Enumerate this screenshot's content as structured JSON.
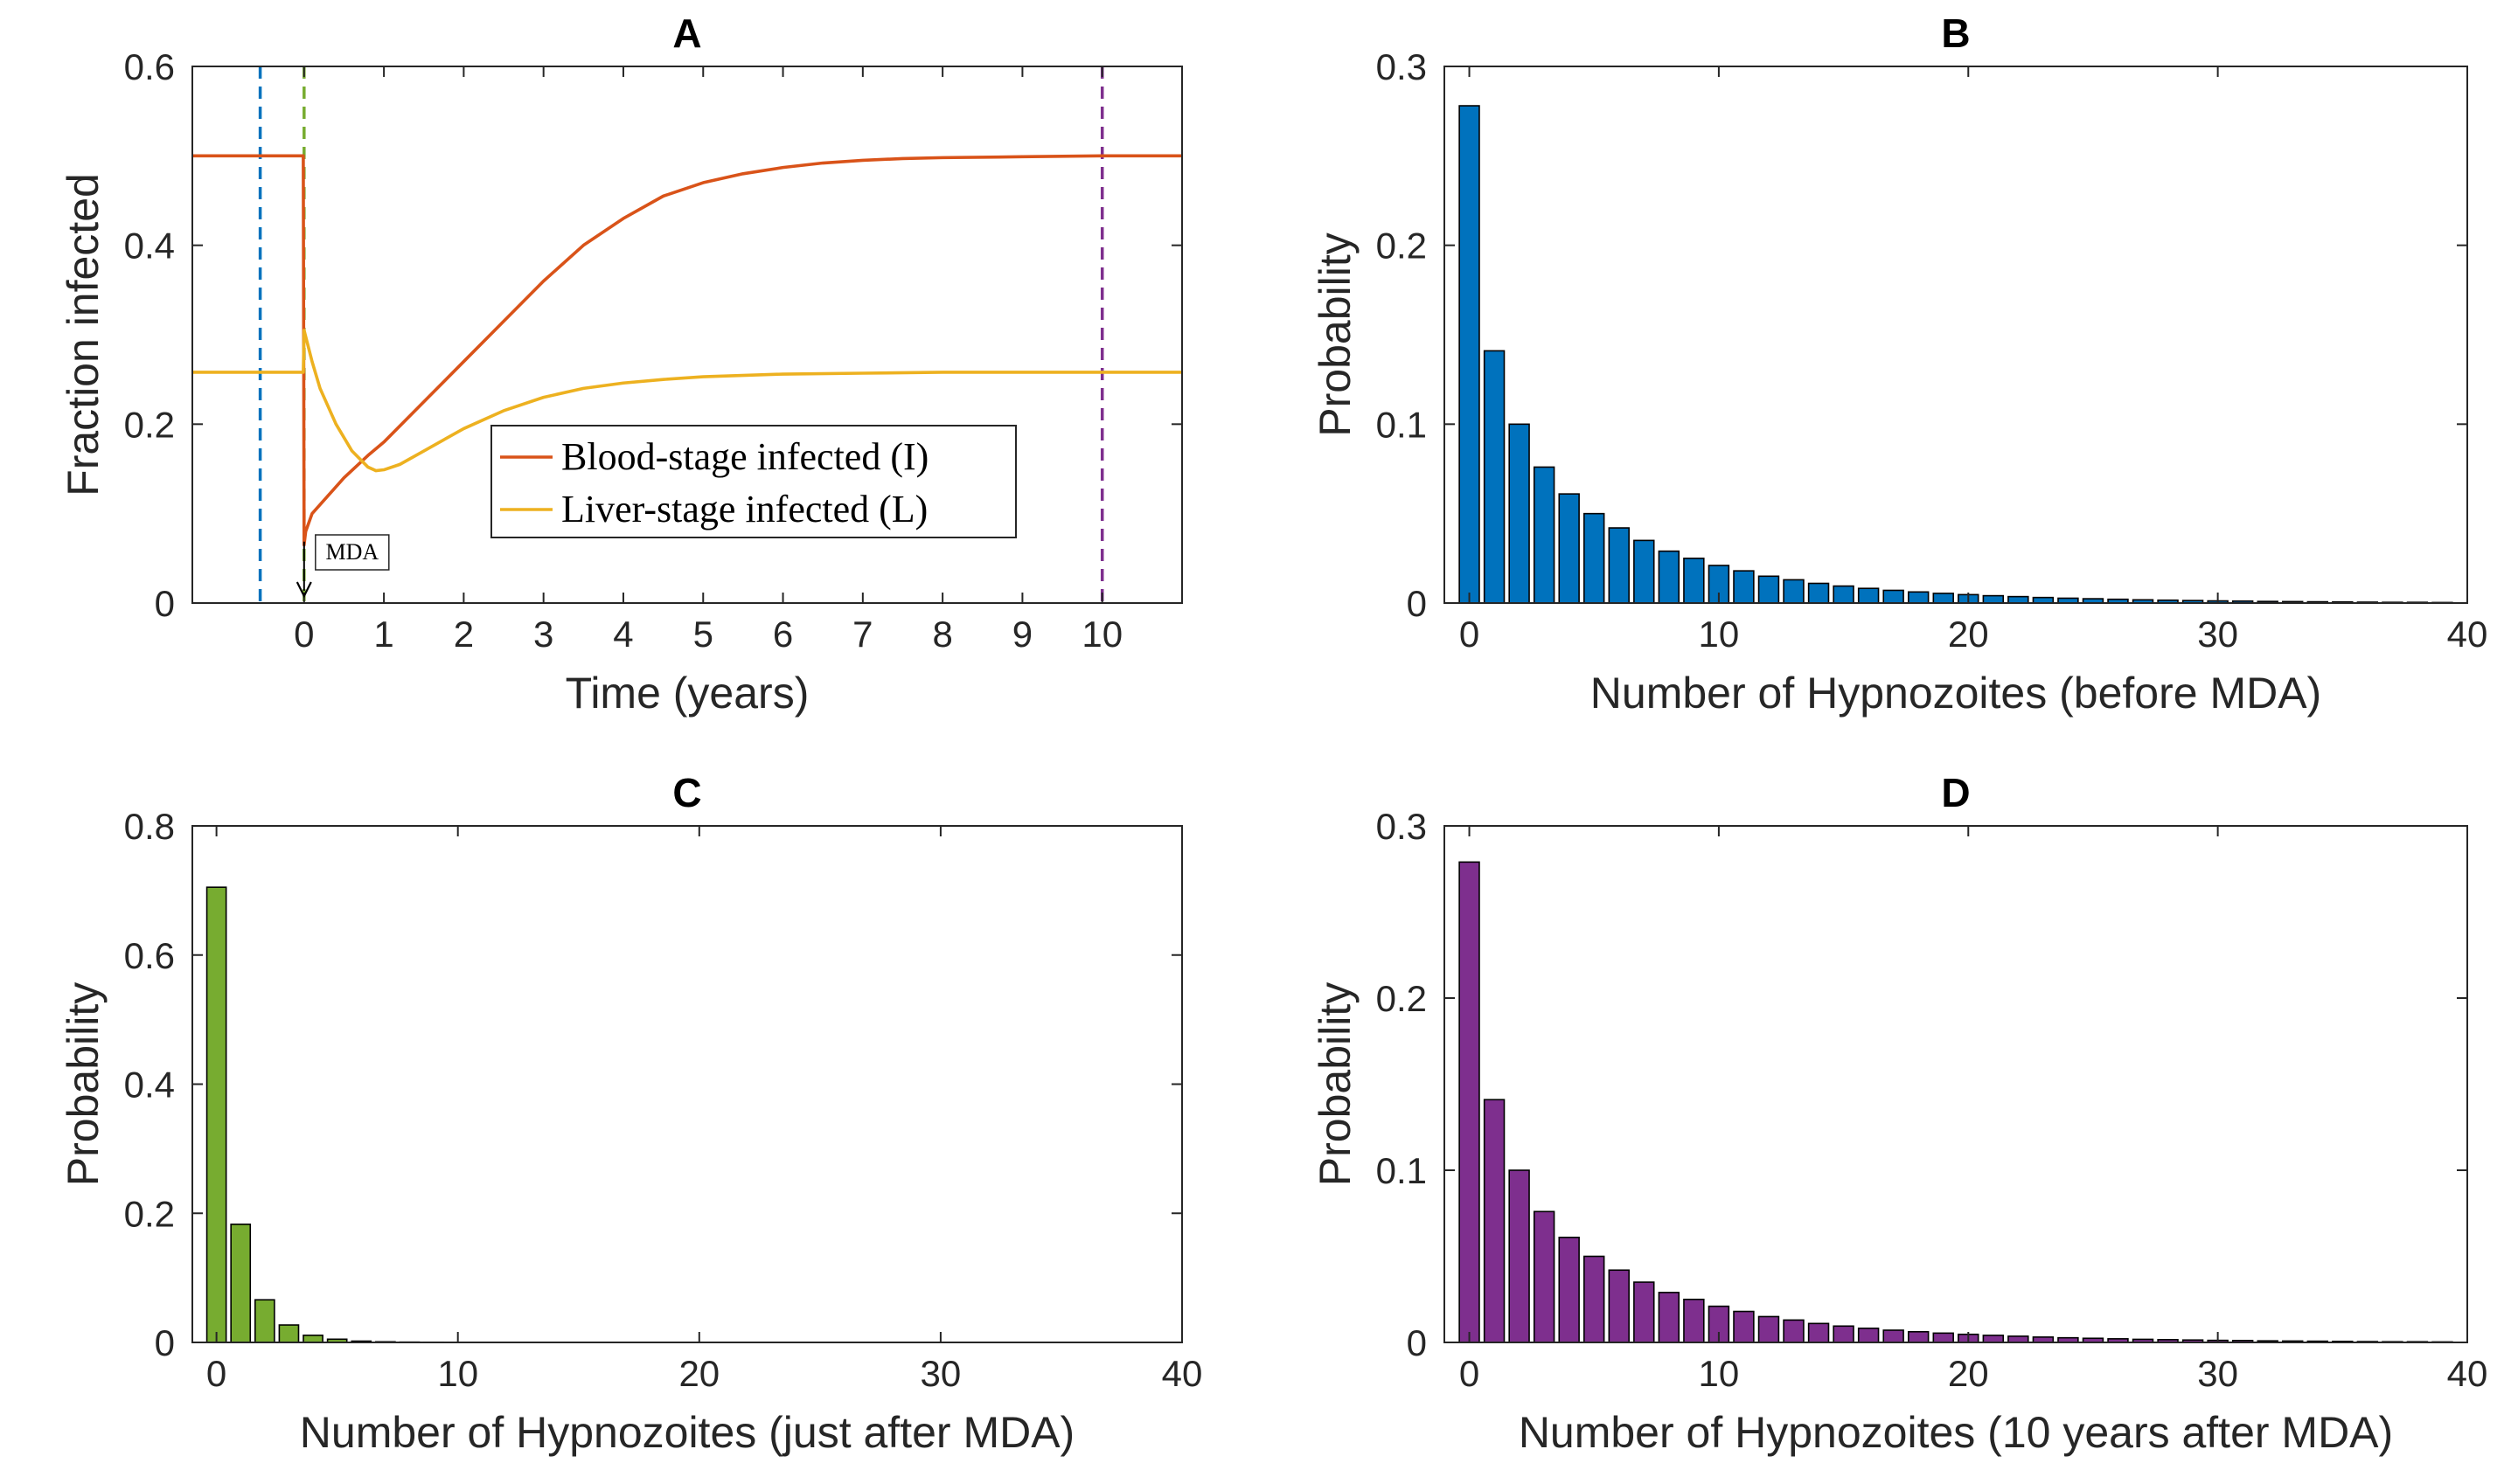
{
  "colors": {
    "blood": "#D95319",
    "liver": "#EDB120",
    "vline_blue": "#0072BD",
    "vline_green": "#77AC30",
    "vline_purple": "#7E2F8E",
    "bar_B": "#0072BD",
    "bar_C": "#77AC30",
    "bar_D": "#7E2F8E",
    "axis": "#262626"
  },
  "chart_data": [
    {
      "panel": "A",
      "type": "line",
      "title": "A",
      "xlabel": "Time (years)",
      "ylabel": "Fraction infected",
      "xlim": [
        -1.4,
        11
      ],
      "ylim": [
        0,
        0.6
      ],
      "xticks": [
        0,
        1,
        2,
        3,
        4,
        5,
        6,
        7,
        8,
        9,
        10
      ],
      "xtick_labels": [
        "0",
        "1",
        "2",
        "3",
        "4",
        "5",
        "6",
        "7",
        "8",
        "9",
        "10"
      ],
      "yticks": [
        0,
        0.2,
        0.4,
        0.6
      ],
      "ytick_labels": [
        "0",
        "0.2",
        "0.4",
        "0.6"
      ],
      "series": [
        {
          "name": "Blood-stage infected (I)",
          "x": [
            -1.4,
            -0.01,
            0,
            0.02,
            0.1,
            0.3,
            0.5,
            0.8,
            1,
            1.5,
            2,
            2.5,
            3,
            3.5,
            4,
            4.5,
            5,
            5.5,
            6,
            6.5,
            7,
            7.5,
            8,
            9,
            10,
            11
          ],
          "y": [
            0.5,
            0.5,
            0.065,
            0.08,
            0.1,
            0.12,
            0.14,
            0.165,
            0.18,
            0.225,
            0.27,
            0.315,
            0.36,
            0.4,
            0.43,
            0.455,
            0.47,
            0.48,
            0.487,
            0.492,
            0.495,
            0.497,
            0.498,
            0.499,
            0.5,
            0.5
          ]
        },
        {
          "name": "Liver-stage infected (L)",
          "x": [
            -1.4,
            -0.01,
            0,
            0.1,
            0.2,
            0.4,
            0.6,
            0.8,
            0.9,
            1,
            1.2,
            1.5,
            2,
            2.5,
            3,
            3.5,
            4,
            4.5,
            5,
            6,
            7,
            8,
            9,
            10,
            11
          ],
          "y": [
            0.258,
            0.258,
            0.305,
            0.27,
            0.24,
            0.2,
            0.17,
            0.152,
            0.148,
            0.149,
            0.155,
            0.17,
            0.195,
            0.215,
            0.23,
            0.24,
            0.246,
            0.25,
            0.253,
            0.256,
            0.257,
            0.258,
            0.258,
            0.258,
            0.258
          ]
        }
      ],
      "vlines": [
        {
          "x": -0.55,
          "color_key": "vline_blue"
        },
        {
          "x": 0,
          "color_key": "vline_green"
        },
        {
          "x": 10,
          "color_key": "vline_purple"
        }
      ],
      "annotation": {
        "text": "MDA",
        "x": 0,
        "y": 0.055
      },
      "legend_location": "inside-right"
    },
    {
      "panel": "B",
      "type": "bar",
      "title": "B",
      "xlabel": "Number of Hypnozoites (before MDA)",
      "ylabel": "Probability",
      "xlim": [
        -1,
        40
      ],
      "ylim": [
        0,
        0.3
      ],
      "xticks": [
        0,
        10,
        20,
        30,
        40
      ],
      "xtick_labels": [
        "0",
        "10",
        "20",
        "30",
        "40"
      ],
      "yticks": [
        0,
        0.1,
        0.2,
        0.3
      ],
      "ytick_labels": [
        "0",
        "0.1",
        "0.2",
        "0.3"
      ],
      "categories": [
        0,
        1,
        2,
        3,
        4,
        5,
        6,
        7,
        8,
        9,
        10,
        11,
        12,
        13,
        14,
        15,
        16,
        17,
        18,
        19,
        20,
        21,
        22,
        23,
        24,
        25,
        26,
        27,
        28,
        29,
        30,
        31,
        32,
        33,
        34,
        35,
        36,
        37,
        38,
        39
      ],
      "values": [
        0.278,
        0.141,
        0.1,
        0.076,
        0.061,
        0.05,
        0.042,
        0.035,
        0.029,
        0.025,
        0.021,
        0.018,
        0.015,
        0.013,
        0.011,
        0.0095,
        0.0082,
        0.0071,
        0.0062,
        0.0054,
        0.0047,
        0.0041,
        0.0036,
        0.0031,
        0.0027,
        0.0024,
        0.0021,
        0.0018,
        0.0016,
        0.0014,
        0.0012,
        0.0011,
        0.0009,
        0.0008,
        0.0007,
        0.0006,
        0.0005,
        0.0004,
        0.0004,
        0.0003
      ],
      "color_key": "bar_B"
    },
    {
      "panel": "C",
      "type": "bar",
      "title": "C",
      "xlabel": "Number of Hypnozoites (just after MDA)",
      "ylabel": "Probability",
      "xlim": [
        -1,
        40
      ],
      "ylim": [
        0,
        0.8
      ],
      "xticks": [
        0,
        10,
        20,
        30,
        40
      ],
      "xtick_labels": [
        "0",
        "10",
        "20",
        "30",
        "40"
      ],
      "yticks": [
        0,
        0.2,
        0.4,
        0.6,
        0.8
      ],
      "ytick_labels": [
        "0",
        "0.2",
        "0.4",
        "0.6",
        "0.8"
      ],
      "categories": [
        0,
        1,
        2,
        3,
        4,
        5,
        6,
        7,
        8,
        9,
        10,
        11,
        12,
        13,
        14,
        15,
        16,
        17,
        18,
        19,
        20,
        21,
        22,
        23,
        24,
        25,
        26,
        27,
        28,
        29,
        30,
        31,
        32,
        33,
        34,
        35,
        36,
        37,
        38,
        39
      ],
      "values": [
        0.705,
        0.183,
        0.066,
        0.027,
        0.011,
        0.005,
        0.002,
        0.001,
        0.0005,
        0.0003,
        0.0002,
        0.0001,
        0.0001,
        0.0001,
        0.0001,
        0.0001,
        0.0001,
        0.0001,
        0.0001,
        0.0001,
        0.0001,
        0.0001,
        0.0001,
        0.0001,
        0.0001,
        0.0001,
        0.0001,
        0.0001,
        0.0001,
        0.0001,
        0.0001,
        0.0001,
        0.0001,
        0.0001,
        0.0001,
        0.0001,
        0.0001,
        0.0001,
        0.0001,
        0.0001
      ],
      "color_key": "bar_C"
    },
    {
      "panel": "D",
      "type": "bar",
      "title": "D",
      "xlabel": "Number of Hypnozoites (10 years after MDA)",
      "ylabel": "Probability",
      "xlim": [
        -1,
        40
      ],
      "ylim": [
        0,
        0.3
      ],
      "xticks": [
        0,
        10,
        20,
        30,
        40
      ],
      "xtick_labels": [
        "0",
        "10",
        "20",
        "30",
        "40"
      ],
      "yticks": [
        0,
        0.1,
        0.2,
        0.3
      ],
      "ytick_labels": [
        "0",
        "0.1",
        "0.2",
        "0.3"
      ],
      "categories": [
        0,
        1,
        2,
        3,
        4,
        5,
        6,
        7,
        8,
        9,
        10,
        11,
        12,
        13,
        14,
        15,
        16,
        17,
        18,
        19,
        20,
        21,
        22,
        23,
        24,
        25,
        26,
        27,
        28,
        29,
        30,
        31,
        32,
        33,
        34,
        35,
        36,
        37,
        38,
        39
      ],
      "values": [
        0.279,
        0.141,
        0.1,
        0.076,
        0.061,
        0.05,
        0.042,
        0.035,
        0.029,
        0.025,
        0.021,
        0.018,
        0.015,
        0.013,
        0.011,
        0.0095,
        0.0082,
        0.0071,
        0.0062,
        0.0054,
        0.0047,
        0.0041,
        0.0036,
        0.0031,
        0.0027,
        0.0024,
        0.0021,
        0.0018,
        0.0016,
        0.0014,
        0.0012,
        0.0011,
        0.0009,
        0.0008,
        0.0007,
        0.0006,
        0.0005,
        0.0004,
        0.0004,
        0.0003
      ],
      "color_key": "bar_D"
    }
  ]
}
